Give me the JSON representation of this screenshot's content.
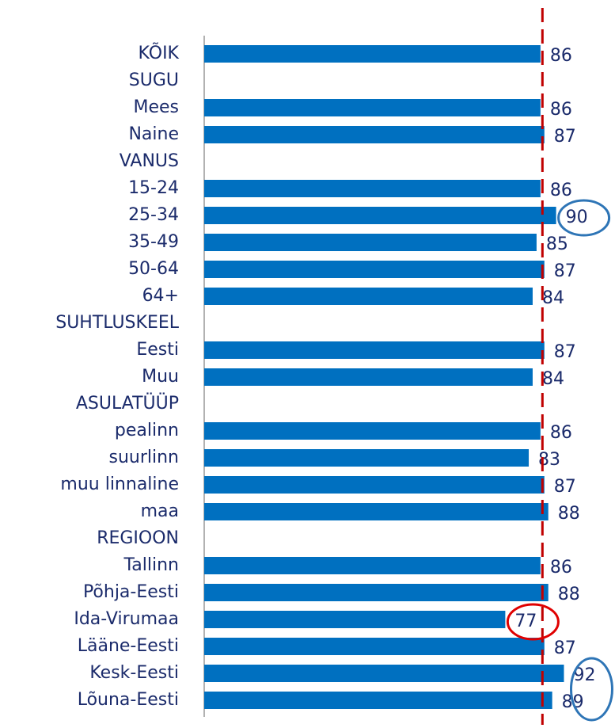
{
  "chart_data": {
    "type": "barh",
    "categories": [
      "KÕIK",
      "SUGU",
      "Mees",
      "Naine",
      "VANUS",
      "15-24",
      "25-34",
      "35-49",
      "50-64",
      "64+",
      "SUHTLUSKEEL",
      "Eesti",
      "Muu",
      "ASULATÜÜP",
      "pealinn",
      "suurlinn",
      "muu linnaline",
      "maa",
      "REGIOON",
      "Tallinn",
      "Põhja-Eesti",
      "Ida-Virumaa",
      "Lääne-Eesti",
      "Kesk-Eesti",
      "Lõuna-Eesti"
    ],
    "values": [
      86,
      null,
      86,
      87,
      null,
      86,
      90,
      85,
      87,
      84,
      null,
      87,
      84,
      null,
      86,
      83,
      87,
      88,
      null,
      86,
      88,
      77,
      87,
      92,
      89
    ],
    "color": "#0070c0",
    "xlim": [
      0,
      100
    ],
    "reference_line": {
      "value": 86.5,
      "color": "#c00000"
    },
    "highlights": [
      {
        "from": 6,
        "to": 6,
        "color": "#2e75b6"
      },
      {
        "from": 21,
        "to": 21,
        "color": "#e00000"
      },
      {
        "from": 23,
        "to": 24,
        "color": "#2e75b6"
      }
    ]
  }
}
